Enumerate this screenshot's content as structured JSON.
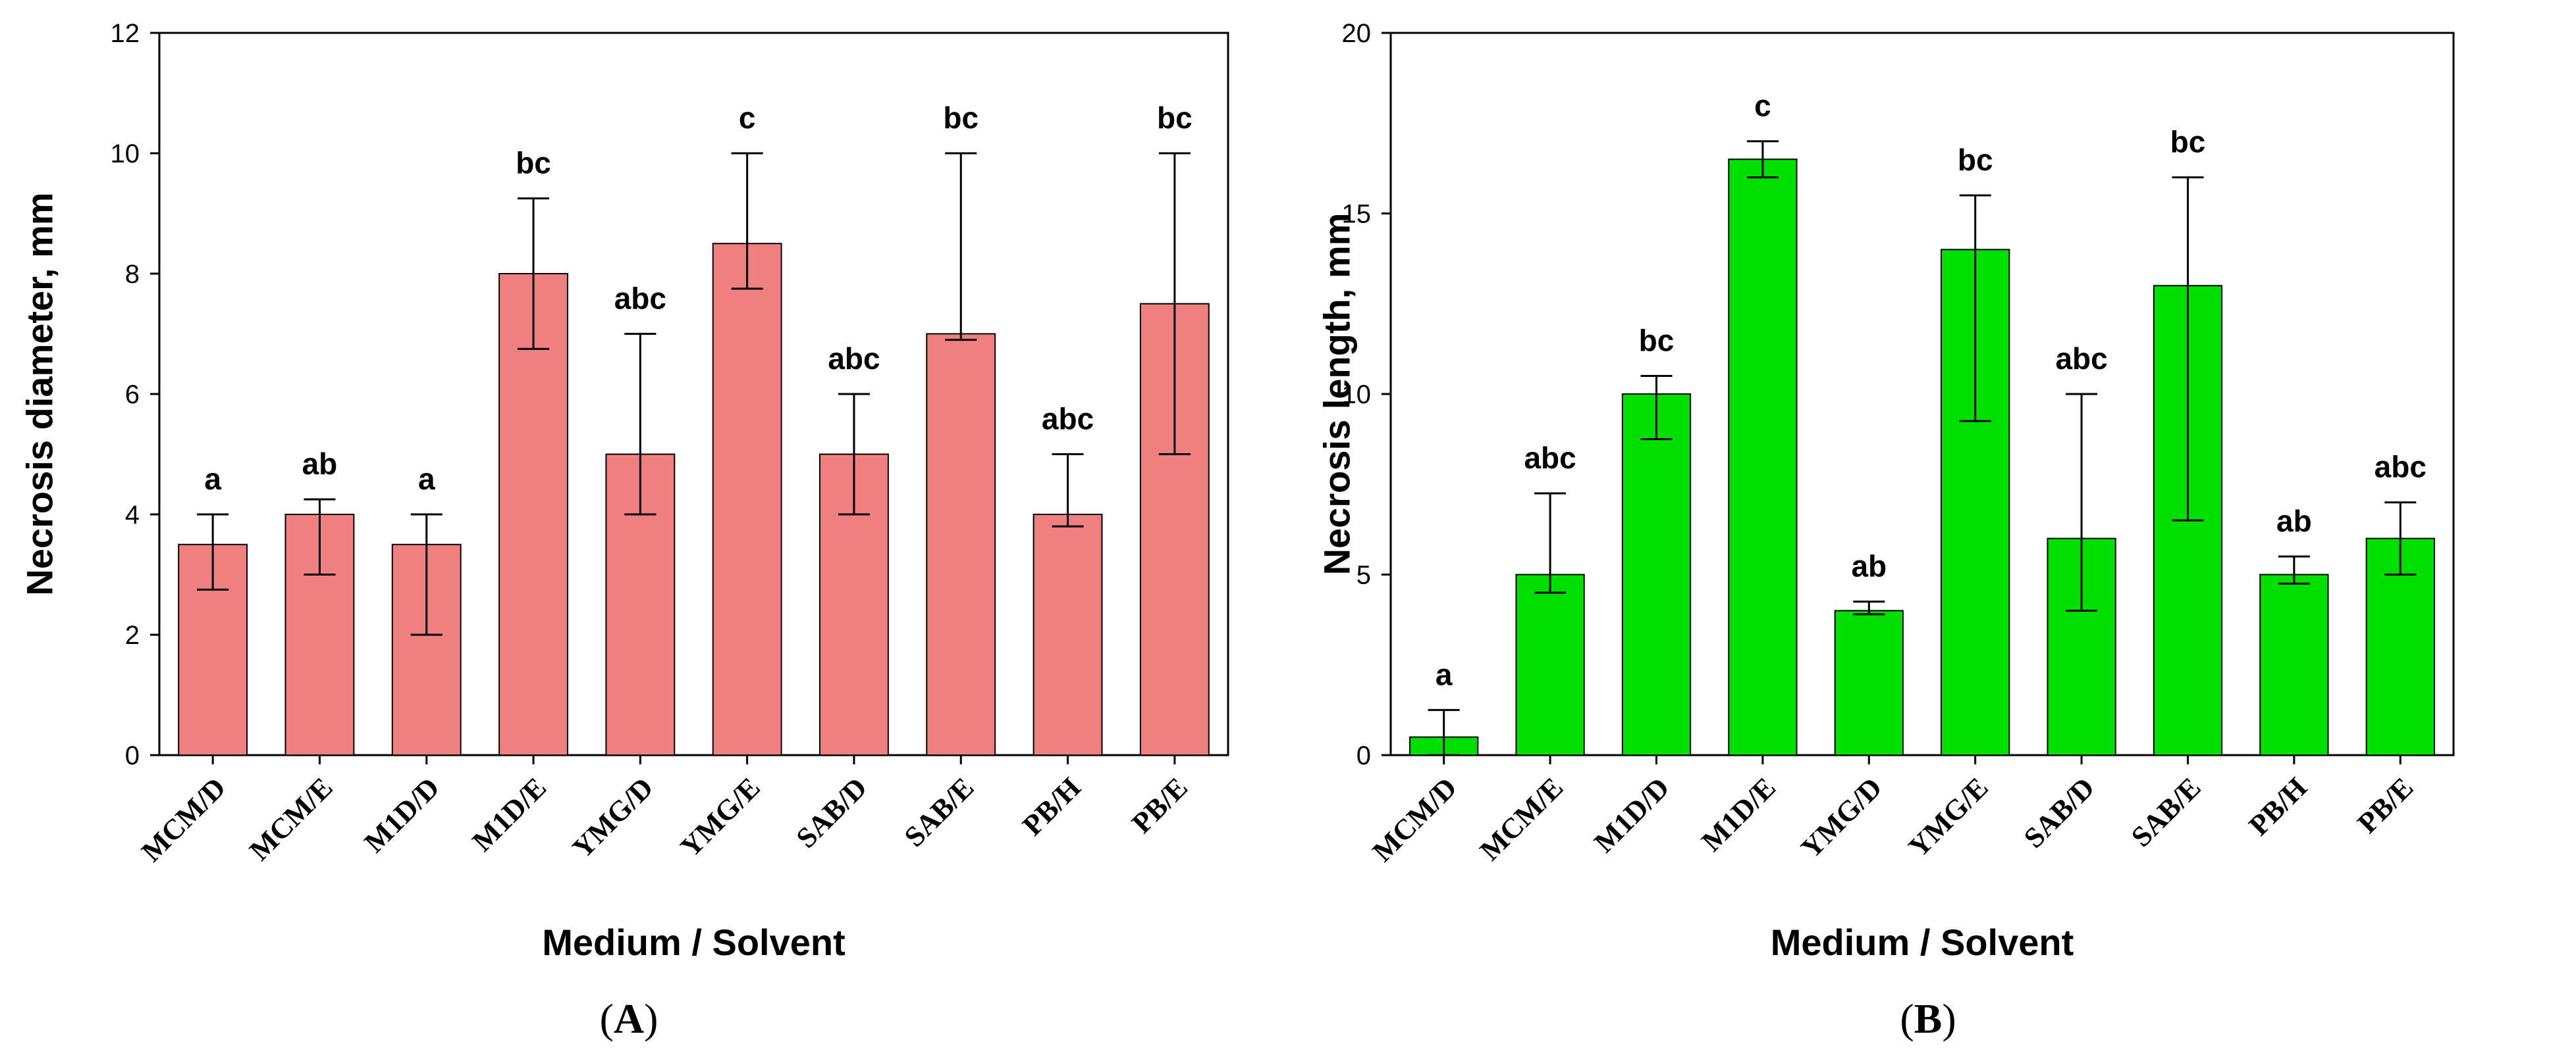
{
  "chart_data": [
    {
      "type": "bar",
      "panel": "A",
      "panel_open": "(",
      "panel_close": ")",
      "bar_color": "#f08080",
      "categories": [
        "MCM/D",
        "MCM/E",
        "M1D/D",
        "M1D/E",
        "YMG/D",
        "YMG/E",
        "SAB/D",
        "SAB/E",
        "PB/H",
        "PB/E"
      ],
      "values": [
        3.5,
        4.0,
        3.5,
        8.0,
        5.0,
        8.5,
        5.0,
        7.0,
        4.0,
        7.5
      ],
      "err_low": [
        2.75,
        3.0,
        2.0,
        6.75,
        4.0,
        7.75,
        4.0,
        6.9,
        3.8,
        5.0
      ],
      "err_high": [
        4.0,
        4.25,
        4.0,
        9.25,
        7.0,
        10.0,
        6.0,
        10.0,
        5.0,
        10.0
      ],
      "significance": [
        "a",
        "ab",
        "a",
        "bc",
        "abc",
        "c",
        "abc",
        "bc",
        "abc",
        "bc"
      ],
      "xlabel": "Medium / Solvent",
      "ylabel": "Necrosis diameter, mm",
      "ylim": [
        0,
        12
      ],
      "yticks": [
        0,
        2,
        4,
        6,
        8,
        10,
        12
      ],
      "grid": false
    },
    {
      "type": "bar",
      "panel": "B",
      "panel_open": "(",
      "panel_close": ")",
      "bar_color": "#00e000",
      "categories": [
        "MCM/D",
        "MCM/E",
        "M1D/D",
        "M1D/E",
        "YMG/D",
        "YMG/E",
        "SAB/D",
        "SAB/E",
        "PB/H",
        "PB/E"
      ],
      "values": [
        0.5,
        5.0,
        10.0,
        16.5,
        4.0,
        14.0,
        6.0,
        13.0,
        5.0,
        6.0
      ],
      "err_low": [
        0.0,
        4.5,
        8.75,
        16.0,
        3.9,
        9.25,
        4.0,
        6.5,
        4.75,
        5.0
      ],
      "err_high": [
        1.25,
        7.25,
        10.5,
        17.0,
        4.25,
        15.5,
        10.0,
        16.0,
        5.5,
        7.0
      ],
      "significance": [
        "a",
        "abc",
        "bc",
        "c",
        "ab",
        "bc",
        "abc",
        "bc",
        "ab",
        "abc"
      ],
      "xlabel": "Medium / Solvent",
      "ylabel": "Necrosis length, mm",
      "ylim": [
        0,
        20
      ],
      "yticks": [
        0,
        5,
        10,
        15,
        20
      ],
      "grid": false
    }
  ]
}
